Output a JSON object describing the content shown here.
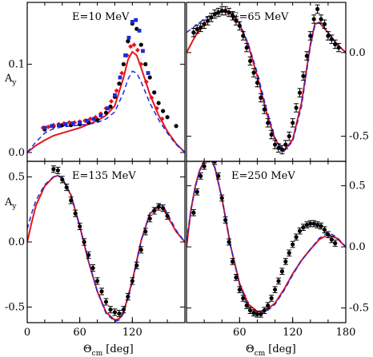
{
  "figure": {
    "ylabel": "A",
    "ylabel_sub": "y",
    "xlabel": "Θ",
    "xlabel_sub": "cm",
    "xlabel_unit": "[deg]"
  },
  "colors": {
    "solid_line": "#e8141c",
    "dashed_line": "#1f28d9",
    "black": "#000000",
    "red": "#e8141c",
    "blue": "#1f28d9"
  },
  "chart_data": [
    {
      "type": "scatter",
      "title": "E=10 MeV",
      "xlim": [
        0,
        180
      ],
      "ylim": [
        -0.01,
        0.17
      ],
      "yticks": [
        0.0,
        0.1
      ],
      "ytick_labels": [
        "0.0",
        "0.1"
      ],
      "ytick_side": "left",
      "xticks": [],
      "xtick_labels": [],
      "series": [
        {
          "style": "line-solid",
          "color": "#e8141c",
          "x": [
            0,
            10,
            20,
            30,
            40,
            50,
            60,
            70,
            80,
            90,
            100,
            110,
            115,
            120,
            125,
            130,
            140,
            150,
            160,
            170,
            180
          ],
          "y": [
            0.0,
            0.008,
            0.014,
            0.019,
            0.022,
            0.025,
            0.028,
            0.032,
            0.036,
            0.042,
            0.053,
            0.085,
            0.105,
            0.114,
            0.11,
            0.096,
            0.066,
            0.042,
            0.024,
            0.01,
            0.0
          ]
        },
        {
          "style": "line-dashed",
          "color": "#1f28d9",
          "x": [
            0,
            10,
            20,
            30,
            40,
            50,
            60,
            70,
            80,
            90,
            100,
            110,
            115,
            120,
            125,
            130,
            140,
            150,
            160,
            170,
            180
          ],
          "y": [
            0.0,
            0.012,
            0.022,
            0.027,
            0.029,
            0.03,
            0.031,
            0.032,
            0.034,
            0.038,
            0.046,
            0.068,
            0.083,
            0.092,
            0.09,
            0.08,
            0.056,
            0.037,
            0.022,
            0.009,
            0.0
          ]
        },
        {
          "style": "points",
          "color": "#000000",
          "marker": "circle",
          "x": [
            20,
            30,
            40,
            50,
            60,
            70,
            80,
            90,
            95,
            100,
            105,
            110,
            115,
            120,
            125,
            130,
            135,
            140,
            145,
            150,
            155,
            160,
            170
          ],
          "y": [
            0.026,
            0.03,
            0.031,
            0.031,
            0.032,
            0.034,
            0.037,
            0.045,
            0.052,
            0.063,
            0.078,
            0.1,
            0.126,
            0.146,
            0.14,
            0.122,
            0.1,
            0.085,
            0.068,
            0.056,
            0.047,
            0.04,
            0.03
          ]
        },
        {
          "style": "points",
          "color": "#e8141c",
          "marker": "diamond",
          "x": [
            18,
            24,
            30,
            36,
            42,
            48,
            54,
            60,
            66,
            72,
            78,
            84,
            90,
            96,
            102,
            108,
            114,
            118,
            122,
            126,
            130,
            136,
            142,
            148,
            154
          ],
          "y": [
            0.028,
            0.029,
            0.031,
            0.032,
            0.033,
            0.034,
            0.034,
            0.035,
            0.036,
            0.038,
            0.04,
            0.044,
            0.05,
            0.058,
            0.07,
            0.09,
            0.11,
            0.12,
            0.122,
            0.116,
            0.1,
            0.08,
            0.062,
            0.05,
            0.038
          ]
        },
        {
          "style": "points",
          "color": "#1f28d9",
          "marker": "square",
          "x": [
            20,
            28,
            36,
            44,
            52,
            60,
            68,
            76,
            84,
            92,
            100,
            106,
            112,
            116,
            120,
            124,
            128,
            132,
            138
          ],
          "y": [
            0.028,
            0.03,
            0.031,
            0.032,
            0.033,
            0.034,
            0.036,
            0.038,
            0.042,
            0.05,
            0.065,
            0.085,
            0.11,
            0.13,
            0.148,
            0.15,
            0.138,
            0.115,
            0.09
          ]
        }
      ]
    },
    {
      "type": "scatter",
      "title": "E=65 MeV",
      "xlim": [
        0,
        180
      ],
      "ylim": [
        -0.65,
        0.3
      ],
      "yticks": [
        0.0,
        -0.5
      ],
      "ytick_labels": [
        "0.0",
        "-0.5"
      ],
      "ytick_side": "right",
      "xticks": [],
      "xtick_labels": [],
      "series": [
        {
          "style": "line-solid",
          "color": "#e8141c",
          "x": [
            0,
            10,
            20,
            30,
            40,
            50,
            60,
            70,
            80,
            90,
            100,
            110,
            120,
            130,
            140,
            145,
            150,
            160,
            170,
            180
          ],
          "y": [
            0.0,
            0.1,
            0.17,
            0.22,
            0.245,
            0.235,
            0.17,
            0.04,
            -0.14,
            -0.35,
            -0.52,
            -0.59,
            -0.52,
            -0.3,
            0.05,
            0.17,
            0.18,
            0.12,
            0.05,
            0.0
          ]
        },
        {
          "style": "line-dashed",
          "color": "#1f28d9",
          "x": [
            0,
            10,
            20,
            30,
            40,
            50,
            60,
            70,
            80,
            90,
            100,
            110,
            120,
            130,
            140,
            145,
            150,
            160,
            170,
            180
          ],
          "y": [
            0.12,
            0.16,
            0.2,
            0.235,
            0.25,
            0.24,
            0.18,
            0.05,
            -0.12,
            -0.33,
            -0.51,
            -0.59,
            -0.53,
            -0.32,
            0.04,
            0.16,
            0.18,
            0.12,
            0.05,
            0.0
          ]
        },
        {
          "style": "points-err",
          "color": "#000000",
          "marker": "circle",
          "err": 0.025,
          "x": [
            8,
            12,
            16,
            20,
            24,
            28,
            32,
            36,
            40,
            44,
            48,
            52,
            56,
            60,
            64,
            68,
            72,
            76,
            80,
            84,
            88,
            92,
            96,
            100,
            104,
            108,
            112,
            116,
            120,
            124,
            128,
            132,
            136,
            140,
            144,
            148,
            152,
            156,
            160,
            164,
            168,
            172
          ],
          "y": [
            0.12,
            0.14,
            0.15,
            0.17,
            0.19,
            0.21,
            0.23,
            0.24,
            0.25,
            0.25,
            0.24,
            0.22,
            0.19,
            0.16,
            0.1,
            0.03,
            -0.05,
            -0.12,
            -0.18,
            -0.27,
            -0.34,
            -0.42,
            -0.49,
            -0.55,
            -0.57,
            -0.58,
            -0.55,
            -0.5,
            -0.42,
            -0.33,
            -0.24,
            -0.14,
            -0.02,
            0.1,
            0.2,
            0.26,
            0.2,
            0.17,
            0.1,
            0.08,
            0.05,
            0.03
          ]
        }
      ]
    },
    {
      "type": "scatter",
      "title": "E=135 MeV",
      "xlim": [
        0,
        180
      ],
      "ylim": [
        -0.62,
        0.62
      ],
      "yticks": [
        0.5,
        0.0,
        -0.5
      ],
      "ytick_labels": [
        "0.5",
        "0.0",
        "-0.5"
      ],
      "ytick_side": "left",
      "xticks": [
        0,
        60,
        120
      ],
      "xtick_labels": [
        "0",
        "60",
        "120"
      ],
      "series": [
        {
          "style": "line-solid",
          "color": "#e8141c",
          "x": [
            0,
            5,
            10,
            20,
            30,
            35,
            40,
            50,
            60,
            70,
            80,
            90,
            100,
            105,
            110,
            120,
            130,
            140,
            150,
            155,
            160,
            170,
            180
          ],
          "y": [
            0.0,
            0.15,
            0.28,
            0.43,
            0.5,
            0.51,
            0.49,
            0.36,
            0.12,
            -0.15,
            -0.38,
            -0.54,
            -0.6,
            -0.59,
            -0.54,
            -0.3,
            0.01,
            0.22,
            0.27,
            0.26,
            0.2,
            0.08,
            0.0
          ]
        },
        {
          "style": "line-dashed",
          "color": "#1f28d9",
          "x": [
            0,
            5,
            10,
            20,
            30,
            35,
            40,
            50,
            60,
            70,
            80,
            90,
            100,
            105,
            110,
            120,
            130,
            140,
            150,
            155,
            160,
            170,
            180
          ],
          "y": [
            0.1,
            0.22,
            0.32,
            0.44,
            0.5,
            0.51,
            0.49,
            0.36,
            0.12,
            -0.15,
            -0.38,
            -0.55,
            -0.61,
            -0.6,
            -0.55,
            -0.31,
            0.01,
            0.22,
            0.29,
            0.28,
            0.22,
            0.09,
            0.0
          ]
        },
        {
          "style": "points-err",
          "color": "#000000",
          "marker": "circle",
          "err": 0.025,
          "x": [
            30,
            35,
            40,
            45,
            50,
            55,
            60,
            65,
            70,
            75,
            80,
            85,
            90,
            95,
            100,
            105,
            110,
            115,
            120,
            125,
            130,
            135,
            140,
            145,
            150,
            155,
            160
          ],
          "y": [
            0.56,
            0.55,
            0.48,
            0.42,
            0.32,
            0.22,
            0.12,
            0.0,
            -0.1,
            -0.2,
            -0.3,
            -0.38,
            -0.46,
            -0.52,
            -0.54,
            -0.55,
            -0.52,
            -0.42,
            -0.3,
            -0.18,
            -0.06,
            0.08,
            0.18,
            0.24,
            0.27,
            0.26,
            0.2
          ]
        }
      ]
    },
    {
      "type": "scatter",
      "title": "E=250 MeV",
      "xlim": [
        0,
        180
      ],
      "ylim": [
        -0.62,
        0.7
      ],
      "yticks": [
        0.5,
        0.0,
        -0.5
      ],
      "ytick_labels": [
        "0.5",
        "0.0",
        "-0.5"
      ],
      "ytick_side": "right",
      "xticks": [
        60,
        120,
        180
      ],
      "xtick_labels": [
        "60",
        "120",
        "180"
      ],
      "series": [
        {
          "style": "line-solid",
          "color": "#e8141c",
          "x": [
            0,
            5,
            10,
            15,
            20,
            25,
            28,
            32,
            40,
            50,
            60,
            70,
            80,
            90,
            100,
            110,
            120,
            130,
            140,
            150,
            160,
            170,
            180
          ],
          "y": [
            0.0,
            0.3,
            0.5,
            0.63,
            0.7,
            0.72,
            0.71,
            0.65,
            0.4,
            0.0,
            -0.3,
            -0.47,
            -0.53,
            -0.52,
            -0.46,
            -0.35,
            -0.22,
            -0.11,
            -0.02,
            0.06,
            0.1,
            0.07,
            0.0
          ]
        },
        {
          "style": "line-dashed",
          "color": "#1f28d9",
          "x": [
            0,
            5,
            10,
            15,
            20,
            25,
            28,
            32,
            40,
            50,
            60,
            70,
            80,
            90,
            100,
            110,
            120,
            130,
            140,
            150,
            160,
            170,
            180
          ],
          "y": [
            0.05,
            0.3,
            0.49,
            0.62,
            0.7,
            0.72,
            0.71,
            0.65,
            0.4,
            0.0,
            -0.31,
            -0.49,
            -0.55,
            -0.53,
            -0.47,
            -0.36,
            -0.23,
            -0.11,
            -0.02,
            0.07,
            0.12,
            0.08,
            0.0
          ]
        },
        {
          "style": "points-err",
          "color": "#000000",
          "marker": "circle",
          "err": 0.025,
          "x": [
            8,
            12,
            16,
            20,
            24,
            28,
            32,
            36,
            40,
            44,
            48,
            52,
            56,
            60,
            64,
            68,
            72,
            76,
            80,
            84,
            88,
            92,
            96,
            100,
            104,
            108,
            112,
            116,
            120,
            124,
            128,
            132,
            136,
            140,
            144,
            148,
            152,
            156,
            160,
            164,
            168
          ],
          "y": [
            0.28,
            0.45,
            0.58,
            0.66,
            0.72,
            0.73,
            0.7,
            0.58,
            0.4,
            0.22,
            0.04,
            -0.12,
            -0.25,
            -0.35,
            -0.42,
            -0.48,
            -0.52,
            -0.54,
            -0.55,
            -0.55,
            -0.52,
            -0.48,
            -0.42,
            -0.35,
            -0.28,
            -0.2,
            -0.12,
            -0.05,
            0.02,
            0.08,
            0.13,
            0.16,
            0.18,
            0.19,
            0.19,
            0.18,
            0.17,
            0.14,
            0.1,
            0.06,
            0.03
          ]
        }
      ]
    }
  ]
}
